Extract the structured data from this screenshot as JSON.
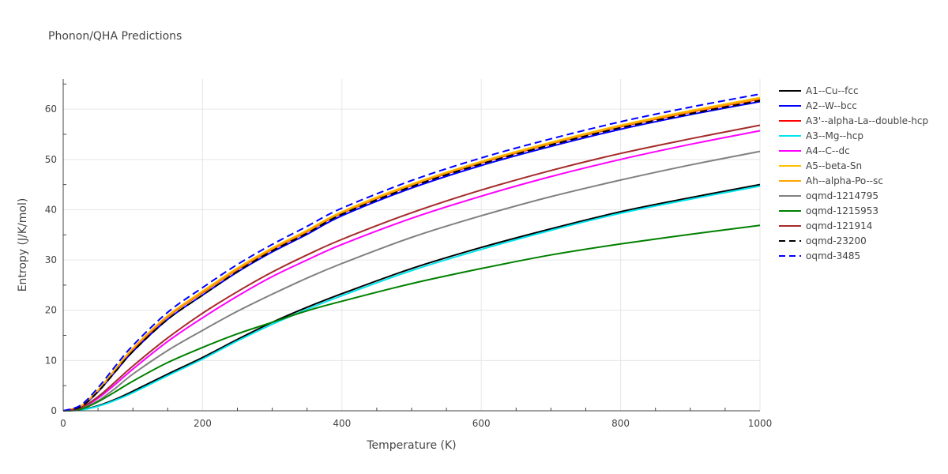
{
  "chart_data": {
    "type": "line",
    "title": "Phonon/QHA Predictions",
    "xlabel": "Temperature (K)",
    "ylabel": "Entropy (J/K/mol)",
    "xlim": [
      0,
      1000
    ],
    "ylim": [
      0,
      66
    ],
    "xticks": [
      0,
      200,
      400,
      600,
      800,
      1000
    ],
    "yticks": [
      0,
      10,
      20,
      30,
      40,
      50,
      60
    ],
    "grid": true,
    "legend_position": "right",
    "x": [
      0,
      25,
      50,
      75,
      100,
      150,
      200,
      250,
      300,
      350,
      400,
      500,
      600,
      700,
      800,
      900,
      1000
    ],
    "series": [
      {
        "name": "A1--Cu--fcc",
        "color": "#000000",
        "dash": "solid",
        "values": [
          0,
          0.2,
          1.0,
          2.3,
          3.9,
          7.3,
          10.6,
          14.2,
          17.6,
          20.6,
          23.3,
          28.3,
          32.5,
          36.2,
          39.6,
          42.4,
          45.0
        ]
      },
      {
        "name": "A2--W--bcc",
        "color": "#0000ff",
        "dash": "solid",
        "values": [
          0,
          0.8,
          3.8,
          7.8,
          11.8,
          18.2,
          23.0,
          27.6,
          31.6,
          35.1,
          38.8,
          44.3,
          48.8,
          52.6,
          56.0,
          58.9,
          61.5
        ]
      },
      {
        "name": "A3'--alpha-La--double-hcp",
        "color": "#ff0000",
        "dash": "solid",
        "values": [
          0,
          0.9,
          4.0,
          8.2,
          12.2,
          18.7,
          23.5,
          28.1,
          32.1,
          35.6,
          39.3,
          44.8,
          49.3,
          53.1,
          56.5,
          59.4,
          62.0
        ]
      },
      {
        "name": "A3--Mg--hcp",
        "color": "#00e5ee",
        "dash": "solid",
        "values": [
          0,
          0.15,
          0.9,
          2.1,
          3.6,
          7.0,
          10.3,
          13.9,
          17.2,
          20.2,
          22.9,
          27.9,
          32.1,
          35.9,
          39.3,
          42.1,
          44.7
        ]
      },
      {
        "name": "A4--C--dc",
        "color": "#ff00ff",
        "dash": "solid",
        "values": [
          0,
          0.5,
          2.5,
          5.3,
          8.3,
          13.8,
          18.5,
          22.8,
          26.7,
          30.0,
          33.1,
          38.3,
          42.7,
          46.6,
          50.0,
          53.0,
          55.7
        ]
      },
      {
        "name": "A5--beta-Sn",
        "color": "#ffc000",
        "dash": "solid",
        "values": [
          0,
          0.9,
          4.1,
          8.3,
          12.4,
          18.9,
          23.8,
          28.4,
          32.4,
          35.9,
          39.6,
          45.1,
          49.6,
          53.4,
          56.8,
          59.7,
          62.3
        ]
      },
      {
        "name": "Ah--alpha-Po--sc",
        "color": "#ffa500",
        "dash": "solid",
        "values": [
          0,
          0.9,
          4.0,
          8.2,
          12.3,
          18.8,
          23.6,
          28.2,
          32.2,
          35.7,
          39.4,
          44.9,
          49.4,
          53.2,
          56.6,
          59.5,
          62.1
        ]
      },
      {
        "name": "oqmd-1214795",
        "color": "#808080",
        "dash": "solid",
        "values": [
          0,
          0.4,
          2.0,
          4.5,
          7.3,
          12.0,
          16.0,
          19.8,
          23.2,
          26.4,
          29.3,
          34.5,
          38.8,
          42.6,
          45.9,
          48.9,
          51.6
        ]
      },
      {
        "name": "oqmd-1215953",
        "color": "#008000",
        "dash": "solid",
        "values": [
          0,
          0.3,
          1.8,
          3.8,
          5.9,
          9.6,
          12.6,
          15.3,
          17.6,
          19.9,
          21.8,
          25.3,
          28.3,
          31.0,
          33.2,
          35.1,
          36.9
        ]
      },
      {
        "name": "oqmd-121914",
        "color": "#a52a2a",
        "dash": "solid",
        "values": [
          0,
          0.6,
          2.8,
          5.8,
          8.9,
          14.5,
          19.4,
          23.7,
          27.6,
          31.0,
          34.1,
          39.4,
          43.9,
          47.8,
          51.2,
          54.1,
          56.8
        ]
      },
      {
        "name": "oqmd-23200",
        "color": "#000000",
        "dash": "dash",
        "values": [
          0,
          0.8,
          3.8,
          7.8,
          11.8,
          18.2,
          23.0,
          27.7,
          31.8,
          35.3,
          39.1,
          44.6,
          49.1,
          52.9,
          56.3,
          59.1,
          61.7
        ]
      },
      {
        "name": "oqmd-3485",
        "color": "#0000ff",
        "dash": "dash",
        "values": [
          0,
          1.1,
          4.6,
          8.9,
          13.0,
          19.6,
          24.5,
          29.1,
          33.1,
          36.7,
          40.3,
          45.8,
          50.3,
          54.1,
          57.5,
          60.4,
          63.0
        ]
      }
    ]
  }
}
